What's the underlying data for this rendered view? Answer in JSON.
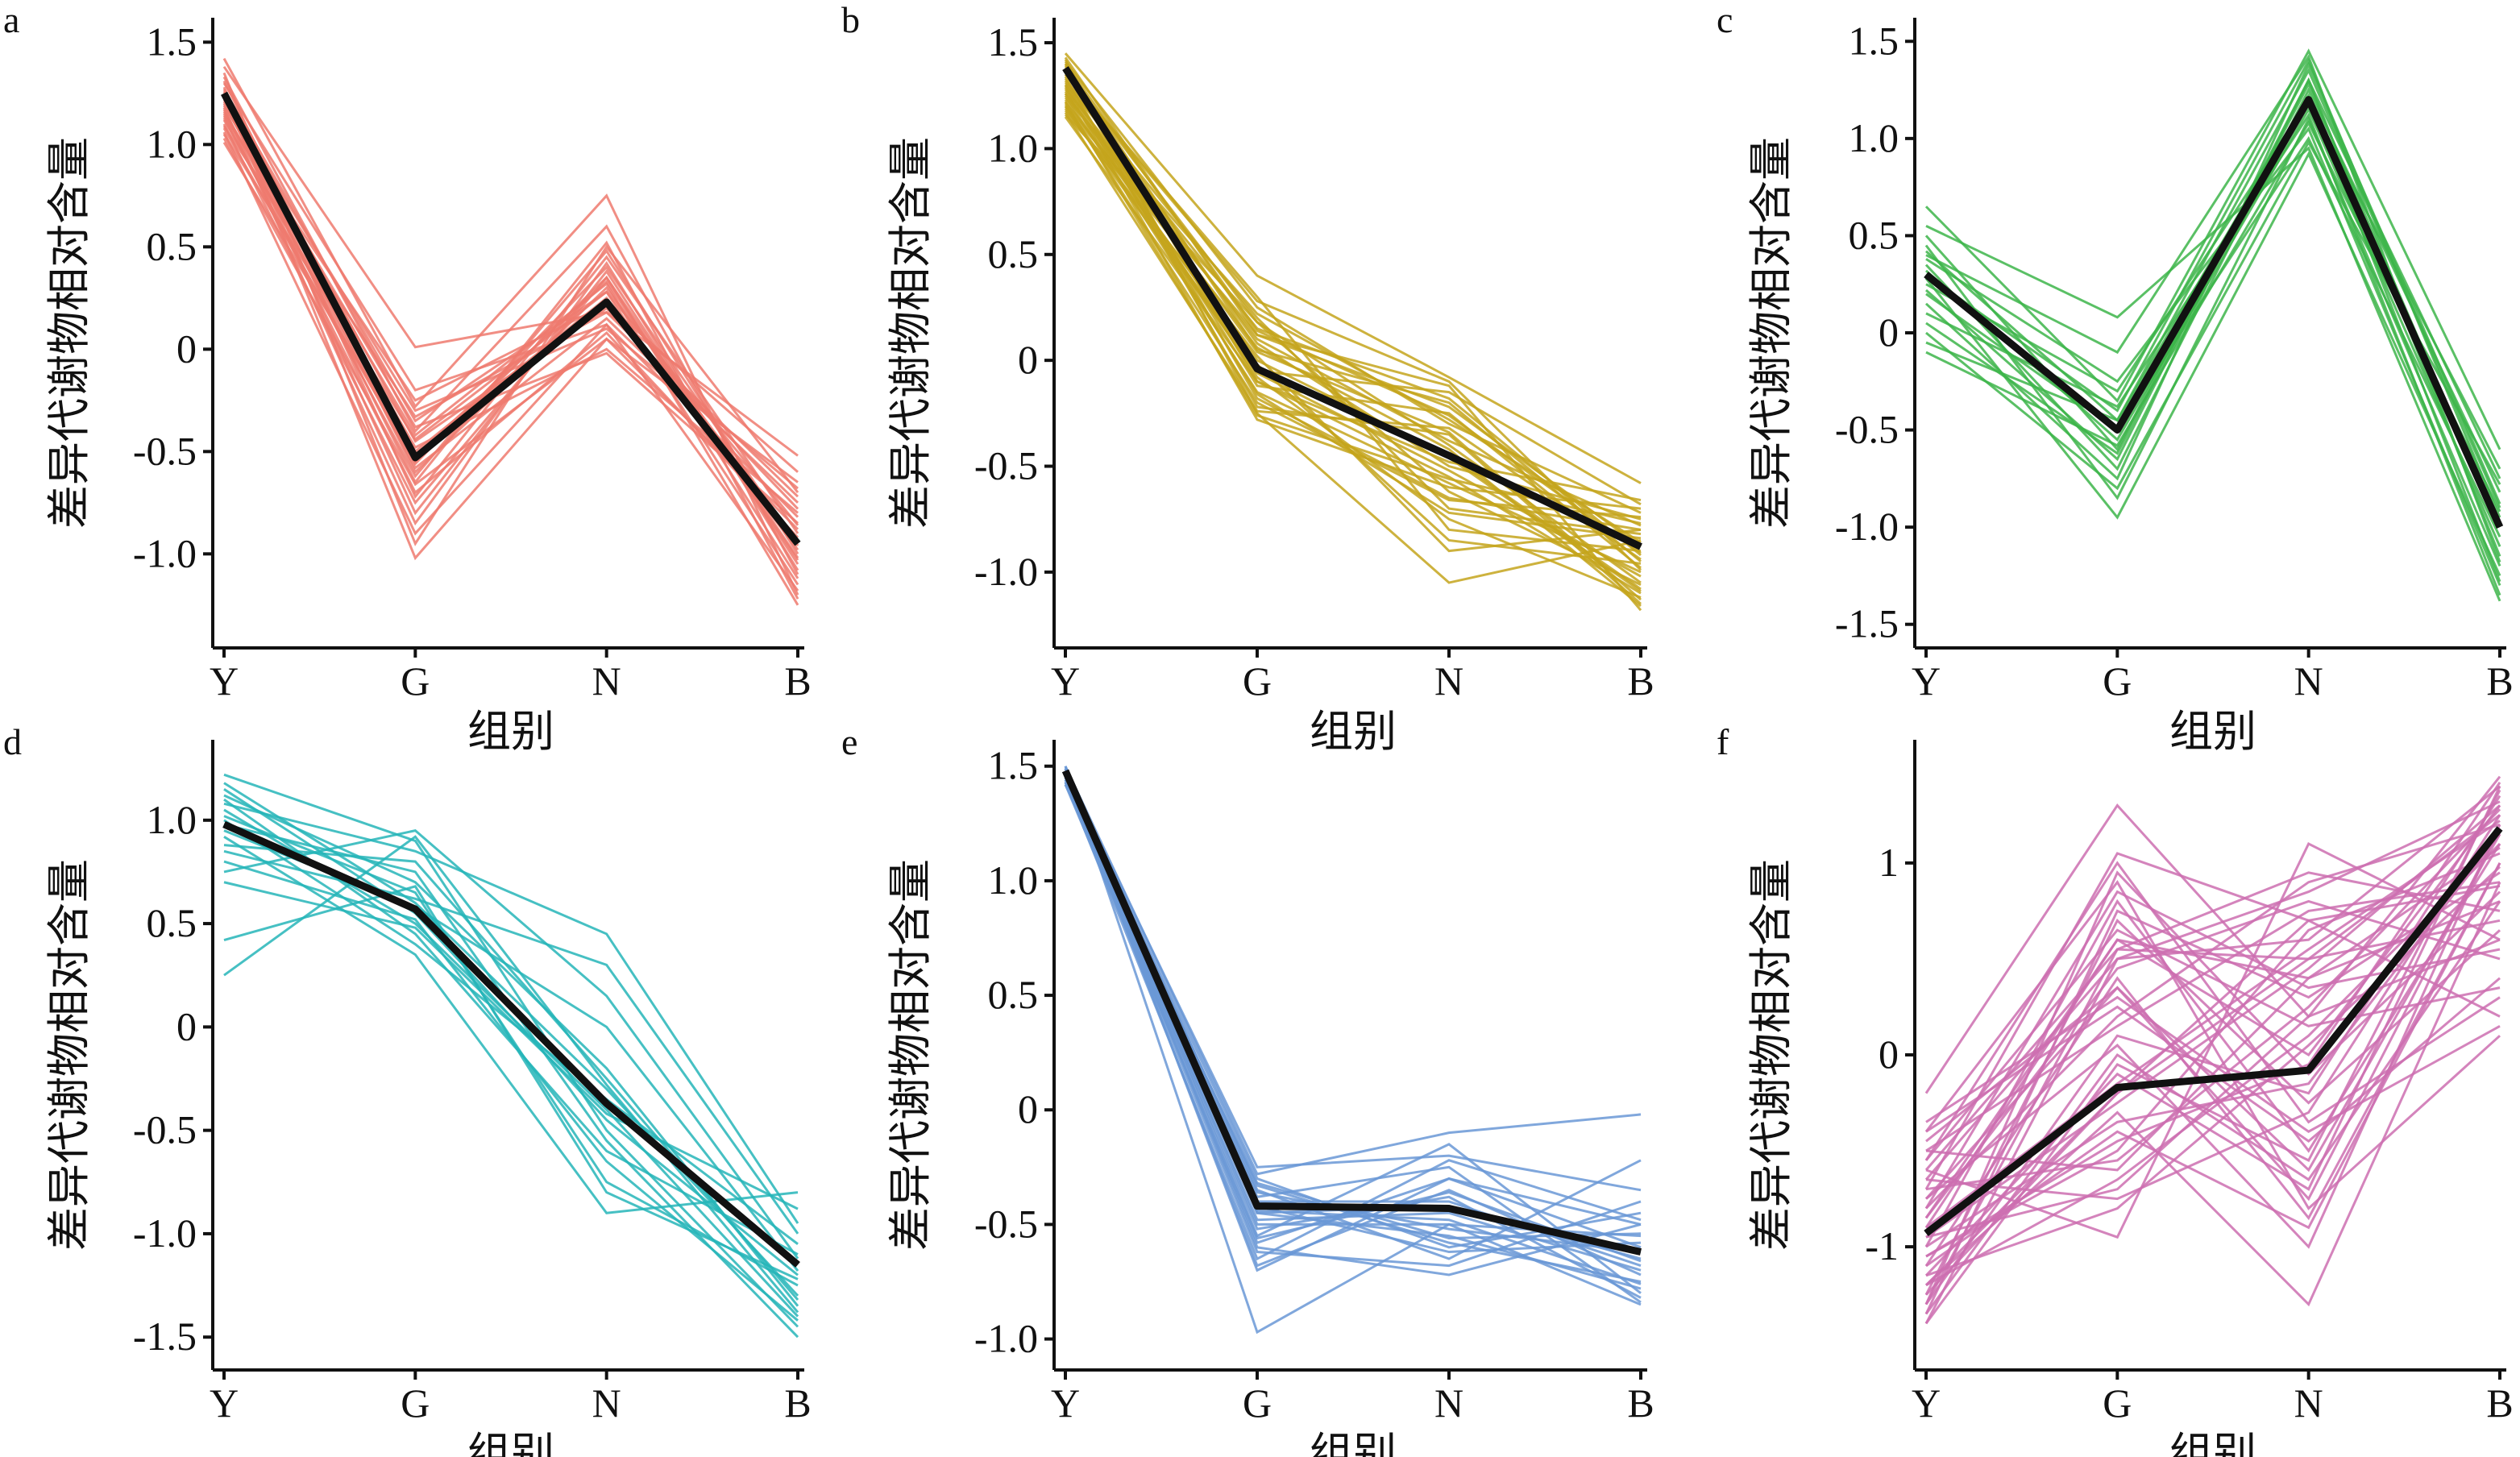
{
  "chart_data": [
    {
      "panel": "a",
      "type": "line",
      "color": "#EE7A6E",
      "categories": [
        "Y",
        "G",
        "N",
        "B"
      ],
      "xlabel": "组别",
      "ylabel": "差异代谢物相对含量",
      "yticks": [
        -1.0,
        -0.5,
        0,
        0.5,
        1.0,
        1.5
      ],
      "ytick_labels": [
        "-1.0",
        "-0.5",
        "0",
        "0.5",
        "1.0",
        "1.5"
      ],
      "ylim": [
        -1.42,
        1.58
      ],
      "mean": [
        1.25,
        -0.53,
        0.23,
        -0.95
      ],
      "members": [
        [
          1.42,
          -0.28,
          0.75,
          -1.2
        ],
        [
          1.38,
          0.01,
          0.18,
          -0.52
        ],
        [
          1.35,
          -0.95,
          0.5,
          -0.7
        ],
        [
          1.33,
          -0.4,
          0.6,
          -1.1
        ],
        [
          1.31,
          -0.55,
          0.35,
          -1.02
        ],
        [
          1.3,
          -0.2,
          0.12,
          -0.82
        ],
        [
          1.28,
          -0.72,
          0.45,
          -0.9
        ],
        [
          1.27,
          -0.35,
          0.28,
          -1.15
        ],
        [
          1.26,
          -1.02,
          0.05,
          -0.88
        ],
        [
          1.25,
          -0.6,
          0.3,
          -0.95
        ],
        [
          1.24,
          -0.45,
          0.2,
          -0.78
        ],
        [
          1.23,
          -0.8,
          0.38,
          -1.05
        ],
        [
          1.22,
          -0.3,
          0.1,
          -0.68
        ],
        [
          1.21,
          -0.65,
          0.52,
          -1.22
        ],
        [
          1.2,
          -0.5,
          0.25,
          -0.98
        ],
        [
          1.19,
          -0.38,
          -0.02,
          -0.85
        ],
        [
          1.18,
          -0.85,
          0.42,
          -1.08
        ],
        [
          1.17,
          -0.58,
          0.15,
          -0.75
        ],
        [
          1.16,
          -0.42,
          0.32,
          -1.25
        ],
        [
          1.15,
          -0.7,
          0.08,
          -0.92
        ],
        [
          1.14,
          -0.25,
          0.22,
          -0.6
        ],
        [
          1.13,
          -0.62,
          0.48,
          -1.0
        ],
        [
          1.12,
          -0.48,
          0.0,
          -0.8
        ],
        [
          1.1,
          -0.75,
          0.35,
          -1.12
        ],
        [
          1.09,
          -0.33,
          0.18,
          -0.72
        ],
        [
          1.08,
          -0.56,
          0.4,
          -0.96
        ],
        [
          1.06,
          -0.9,
          0.12,
          -1.18
        ],
        [
          1.05,
          -0.44,
          0.28,
          -0.86
        ],
        [
          1.03,
          -0.66,
          0.05,
          -0.65
        ],
        [
          1.01,
          -0.52,
          0.33,
          -1.03
        ]
      ]
    },
    {
      "panel": "b",
      "type": "line",
      "color": "#C4A51C",
      "categories": [
        "Y",
        "G",
        "N",
        "B"
      ],
      "xlabel": "组别",
      "ylabel": "差异代谢物相对含量",
      "yticks": [
        -1.0,
        -0.5,
        0,
        0.5,
        1.0,
        1.5
      ],
      "ytick_labels": [
        "-1.0",
        "-0.5",
        "0",
        "0.5",
        "1.0",
        "1.5"
      ],
      "ylim": [
        -1.32,
        1.58
      ],
      "mean": [
        1.38,
        -0.04,
        -0.45,
        -0.88
      ],
      "members": [
        [
          1.45,
          0.4,
          -0.08,
          -0.58
        ],
        [
          1.43,
          0.12,
          -0.12,
          -1.18
        ],
        [
          1.42,
          -0.25,
          -1.05,
          -0.85
        ],
        [
          1.41,
          0.25,
          -0.3,
          -0.72
        ],
        [
          1.4,
          -0.1,
          -0.55,
          -1.1
        ],
        [
          1.39,
          0.05,
          -0.2,
          -0.95
        ],
        [
          1.38,
          -0.18,
          -0.65,
          -0.8
        ],
        [
          1.37,
          0.18,
          -0.4,
          -1.05
        ],
        [
          1.36,
          -0.05,
          -0.15,
          -0.68
        ],
        [
          1.35,
          0.3,
          -0.8,
          -0.9
        ],
        [
          1.34,
          -0.22,
          -0.35,
          -1.15
        ],
        [
          1.33,
          0.08,
          -0.5,
          -0.75
        ],
        [
          1.32,
          -0.12,
          -0.25,
          -0.98
        ],
        [
          1.31,
          0.2,
          -0.7,
          -0.82
        ],
        [
          1.3,
          0.0,
          -0.45,
          -1.08
        ],
        [
          1.29,
          -0.28,
          -0.6,
          -0.7
        ],
        [
          1.28,
          0.15,
          -0.18,
          -0.92
        ],
        [
          1.27,
          -0.08,
          -0.75,
          -1.12
        ],
        [
          1.26,
          0.1,
          -0.38,
          -0.78
        ],
        [
          1.25,
          -0.15,
          -0.58,
          -1.0
        ],
        [
          1.24,
          0.22,
          -0.28,
          -0.86
        ],
        [
          1.23,
          -0.02,
          -0.85,
          -0.96
        ],
        [
          1.22,
          0.06,
          -0.42,
          -1.16
        ],
        [
          1.21,
          -0.2,
          -0.66,
          -0.74
        ],
        [
          1.2,
          0.12,
          -0.22,
          -0.88
        ],
        [
          1.19,
          -0.06,
          -0.52,
          -1.02
        ],
        [
          1.18,
          0.02,
          -0.9,
          -0.8
        ],
        [
          1.17,
          -0.24,
          -0.32,
          -0.94
        ],
        [
          1.16,
          0.18,
          -0.62,
          -1.06
        ],
        [
          1.15,
          -0.1,
          -0.48,
          -0.66
        ],
        [
          1.35,
          0.28,
          -0.1,
          -0.99
        ],
        [
          1.3,
          -0.16,
          -0.72,
          -0.84
        ],
        [
          1.26,
          0.04,
          -0.34,
          -1.13
        ],
        [
          1.22,
          -0.26,
          -0.56,
          -0.77
        ],
        [
          1.4,
          0.14,
          -0.26,
          -0.91
        ],
        [
          1.2,
          -0.04,
          -0.46,
          -1.09
        ]
      ]
    },
    {
      "panel": "c",
      "type": "line",
      "color": "#3DB54A",
      "categories": [
        "Y",
        "G",
        "N",
        "B"
      ],
      "xlabel": "组别",
      "ylabel": "差异代谢物相对含量",
      "yticks": [
        -1.5,
        -1.0,
        -0.5,
        0,
        0.5,
        1.0,
        1.5
      ],
      "ytick_labels": [
        "-1.5",
        "-1.0",
        "-0.5",
        "0",
        "0.5",
        "1.0",
        "1.5"
      ],
      "ylim": [
        -1.58,
        1.58
      ],
      "mean": [
        0.3,
        -0.5,
        1.2,
        -1.0
      ],
      "members": [
        [
          0.65,
          -0.35,
          1.45,
          -0.6
        ],
        [
          0.55,
          0.08,
          0.95,
          -1.38
        ],
        [
          0.5,
          -0.6,
          1.3,
          -0.75
        ],
        [
          0.45,
          -0.85,
          1.1,
          -1.2
        ],
        [
          0.42,
          -0.45,
          1.35,
          -0.9
        ],
        [
          0.38,
          -0.25,
          1.05,
          -1.3
        ],
        [
          0.35,
          -0.7,
          1.25,
          -0.82
        ],
        [
          0.32,
          -0.55,
          1.15,
          -1.1
        ],
        [
          0.3,
          -0.4,
          1.4,
          -0.95
        ],
        [
          0.28,
          -0.95,
          0.92,
          -1.25
        ],
        [
          0.25,
          -0.3,
          1.2,
          -0.7
        ],
        [
          0.22,
          -0.65,
          1.3,
          -1.15
        ],
        [
          0.2,
          -0.5,
          1.0,
          -1.05
        ],
        [
          0.15,
          -0.75,
          1.38,
          -0.88
        ],
        [
          0.1,
          -0.38,
          1.12,
          -1.35
        ],
        [
          0.05,
          -0.62,
          1.28,
          -1.0
        ],
        [
          0.0,
          -0.8,
          0.98,
          -0.78
        ],
        [
          -0.05,
          -0.45,
          1.22,
          -1.28
        ],
        [
          -0.1,
          -0.58,
          1.08,
          -0.92
        ],
        [
          0.4,
          -0.1,
          1.42,
          -1.18
        ]
      ]
    },
    {
      "panel": "d",
      "type": "line",
      "color": "#26B5B9",
      "categories": [
        "Y",
        "G",
        "N",
        "B"
      ],
      "xlabel": "组别",
      "ylabel": "差异代谢物相对含量",
      "yticks": [
        -1.5,
        -1.0,
        -0.5,
        0,
        0.5,
        1.0
      ],
      "ytick_labels": [
        "-1.5",
        "-1.0",
        "-0.5",
        "0",
        "0.5",
        "1.0"
      ],
      "ylim": [
        -1.62,
        1.35
      ],
      "mean": [
        0.98,
        0.57,
        -0.37,
        -1.15
      ],
      "members": [
        [
          1.22,
          0.9,
          -0.5,
          -1.45
        ],
        [
          1.18,
          0.6,
          -0.3,
          -1.3
        ],
        [
          1.15,
          0.55,
          -0.45,
          -1.2
        ],
        [
          1.12,
          0.7,
          -0.2,
          -1.35
        ],
        [
          1.1,
          0.45,
          -0.6,
          -1.1
        ],
        [
          1.08,
          0.85,
          0.45,
          -0.95
        ],
        [
          1.05,
          0.5,
          -0.4,
          -1.4
        ],
        [
          1.02,
          0.65,
          -0.75,
          -1.25
        ],
        [
          1.0,
          0.4,
          -0.35,
          -1.05
        ],
        [
          0.98,
          0.75,
          -0.55,
          -1.5
        ],
        [
          0.95,
          0.58,
          0.0,
          -1.18
        ],
        [
          0.92,
          0.35,
          -0.9,
          -0.8
        ],
        [
          0.88,
          0.8,
          -0.25,
          -1.32
        ],
        [
          0.85,
          0.62,
          0.3,
          -1.0
        ],
        [
          0.8,
          0.52,
          -0.65,
          -1.42
        ],
        [
          0.75,
          0.95,
          0.15,
          -1.12
        ],
        [
          0.7,
          0.48,
          -0.42,
          -0.88
        ],
        [
          0.42,
          0.68,
          -0.8,
          -1.22
        ],
        [
          0.25,
          0.92,
          -0.28,
          -1.38
        ]
      ]
    },
    {
      "panel": "e",
      "type": "line",
      "color": "#6A98D6",
      "categories": [
        "Y",
        "G",
        "N",
        "B"
      ],
      "xlabel": "组别",
      "ylabel": "差异代谢物相对含量",
      "yticks": [
        -1.0,
        -0.5,
        0,
        0.5,
        1.0,
        1.5
      ],
      "ytick_labels": [
        "-1.0",
        "-0.5",
        "0",
        "0.5",
        "1.0",
        "1.5"
      ],
      "ylim": [
        -1.1,
        1.58
      ],
      "mean": [
        1.48,
        -0.42,
        -0.43,
        -0.62
      ],
      "members": [
        [
          1.5,
          -0.28,
          -0.1,
          -0.02
        ],
        [
          1.5,
          -0.97,
          -0.5,
          -0.85
        ],
        [
          1.49,
          -0.35,
          -0.65,
          -0.22
        ],
        [
          1.49,
          -0.7,
          -0.3,
          -0.6
        ],
        [
          1.49,
          -0.45,
          -0.55,
          -0.78
        ],
        [
          1.48,
          -0.25,
          -0.2,
          -0.35
        ],
        [
          1.48,
          -0.6,
          -0.72,
          -0.5
        ],
        [
          1.48,
          -0.4,
          -0.4,
          -0.68
        ],
        [
          1.47,
          -0.55,
          -0.15,
          -0.8
        ],
        [
          1.47,
          -0.3,
          -0.6,
          -0.45
        ],
        [
          1.47,
          -0.68,
          -0.35,
          -0.72
        ],
        [
          1.46,
          -0.5,
          -0.5,
          -0.55
        ],
        [
          1.46,
          -0.38,
          -0.25,
          -0.84
        ],
        [
          1.46,
          -0.62,
          -0.68,
          -0.4
        ],
        [
          1.45,
          -0.45,
          -0.42,
          -0.65
        ],
        [
          1.45,
          -0.33,
          -0.58,
          -0.75
        ],
        [
          1.45,
          -0.58,
          -0.3,
          -0.5
        ],
        [
          1.44,
          -0.48,
          -0.45,
          -0.7
        ],
        [
          1.44,
          -0.42,
          -0.62,
          -0.58
        ],
        [
          1.44,
          -0.52,
          -0.38,
          -0.82
        ],
        [
          1.43,
          -0.36,
          -0.52,
          -0.62
        ],
        [
          1.43,
          -0.65,
          -0.22,
          -0.48
        ],
        [
          1.43,
          -0.44,
          -0.48,
          -0.76
        ],
        [
          1.42,
          -0.56,
          -0.36,
          -0.66
        ],
        [
          1.42,
          -0.32,
          -0.56,
          -0.54
        ]
      ]
    },
    {
      "panel": "f",
      "type": "line",
      "color": "#CC6FB0",
      "categories": [
        "Y",
        "G",
        "N",
        "B"
      ],
      "xlabel": "组别",
      "ylabel": "差异代谢物相对含量",
      "yticks": [
        -1,
        0,
        1
      ],
      "ytick_labels": [
        "-1",
        "0",
        "1"
      ],
      "ylim": [
        -1.6,
        1.6
      ],
      "mean": [
        -0.93,
        -0.17,
        -0.08,
        1.18
      ],
      "members": [
        [
          -0.2,
          1.3,
          0.2,
          1.45
        ],
        [
          -0.4,
          0.9,
          -0.8,
          0.1
        ],
        [
          -0.6,
          -0.95,
          1.1,
          0.6
        ],
        [
          -1.4,
          0.5,
          0.6,
          1.4
        ],
        [
          -1.2,
          -0.3,
          -1.3,
          0.9
        ],
        [
          -0.8,
          0.2,
          0.9,
          1.2
        ],
        [
          -1.0,
          0.8,
          -0.5,
          1.1
        ],
        [
          -0.5,
          -0.6,
          0.4,
          0.8
        ],
        [
          -1.3,
          0.1,
          -0.2,
          1.35
        ],
        [
          -0.7,
          1.05,
          0.7,
          0.2
        ],
        [
          -1.1,
          -0.4,
          -0.9,
          1.0
        ],
        [
          -0.9,
          0.6,
          0.0,
          1.3
        ],
        [
          -1.25,
          -0.2,
          0.5,
          0.7
        ],
        [
          -0.45,
          0.35,
          -0.6,
          1.15
        ],
        [
          -1.35,
          0.75,
          0.3,
          0.95
        ],
        [
          -0.65,
          -0.75,
          -0.3,
          1.25
        ],
        [
          -0.85,
          0.45,
          0.8,
          0.5
        ],
        [
          -1.15,
          -0.1,
          -0.7,
          1.4
        ],
        [
          -0.55,
          0.65,
          0.15,
          0.35
        ],
        [
          -1.05,
          -0.5,
          0.65,
          1.05
        ],
        [
          -0.75,
          0.05,
          -1.0,
          1.2
        ],
        [
          -1.3,
          0.95,
          -0.1,
          0.85
        ],
        [
          -0.95,
          -0.25,
          0.45,
          1.3
        ],
        [
          -0.35,
          0.3,
          -0.4,
          0.15
        ],
        [
          -1.2,
          -0.65,
          0.1,
          1.1
        ],
        [
          -0.6,
          0.55,
          0.95,
          0.75
        ],
        [
          -1.4,
          -0.05,
          -0.55,
          1.38
        ],
        [
          -0.8,
          0.85,
          0.35,
          0.55
        ],
        [
          -1.0,
          -0.35,
          -0.15,
          1.15
        ],
        [
          -0.5,
          0.15,
          0.75,
          0.9
        ],
        [
          -1.1,
          0.4,
          -0.85,
          1.0
        ],
        [
          -0.7,
          -0.55,
          0.25,
          1.28
        ],
        [
          -1.25,
          0.7,
          -0.25,
          0.65
        ],
        [
          -0.9,
          -0.15,
          0.55,
          1.22
        ],
        [
          -0.4,
          0.25,
          -0.45,
          0.4
        ],
        [
          -1.15,
          -0.8,
          0.05,
          0.98
        ],
        [
          -0.65,
          0.5,
          0.85,
          1.32
        ],
        [
          -1.35,
          0.0,
          -0.65,
          0.8
        ],
        [
          -0.85,
          0.6,
          0.4,
          1.08
        ],
        [
          -1.05,
          -0.45,
          -0.05,
          1.42
        ],
        [
          -0.55,
          1.0,
          -0.35,
          0.3
        ],
        [
          -1.2,
          -0.2,
          0.7,
          0.88
        ],
        [
          -0.75,
          0.35,
          -0.75,
          1.18
        ],
        [
          -0.95,
          -0.7,
          0.2,
          0.6
        ],
        [
          -1.3,
          0.55,
          0.5,
          1.25
        ]
      ]
    }
  ]
}
